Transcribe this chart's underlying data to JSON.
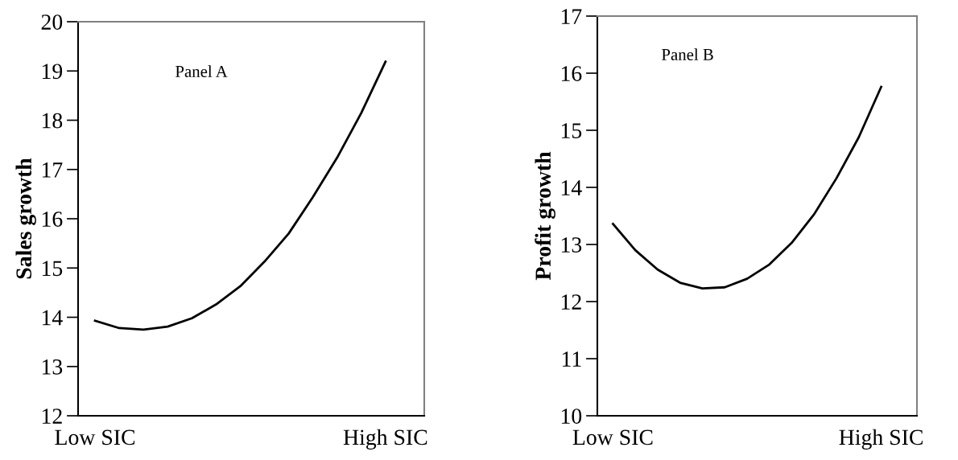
{
  "chart_data": [
    {
      "type": "line",
      "ylabel": "Sales growth",
      "annotations": [
        "Panel A"
      ],
      "categories": [
        "Low SIC",
        null,
        null,
        null,
        null,
        null,
        null,
        null,
        null,
        null,
        null,
        null,
        "High SIC"
      ],
      "series": [
        {
          "color": "#000000",
          "values": [
            13.93,
            13.78,
            13.75,
            13.81,
            13.98,
            14.26,
            14.63,
            15.13,
            15.7,
            16.44,
            17.24,
            18.15,
            19.19
          ]
        }
      ],
      "ylim": [
        12,
        20
      ],
      "yticks": [
        12,
        13,
        14,
        15,
        16,
        17,
        18,
        19,
        20
      ],
      "grid": false,
      "legend": false
    },
    {
      "type": "line",
      "ylabel": "Profit growth",
      "annotations": [
        "Panel B"
      ],
      "categories": [
        "Low SIC",
        null,
        null,
        null,
        null,
        null,
        null,
        null,
        null,
        null,
        null,
        null,
        "High SIC"
      ],
      "series": [
        {
          "color": "#000000",
          "values": [
            13.36,
            12.9,
            12.56,
            12.33,
            12.23,
            12.25,
            12.4,
            12.65,
            13.03,
            13.53,
            14.16,
            14.88,
            15.76
          ]
        }
      ],
      "ylim": [
        10,
        17
      ],
      "yticks": [
        10,
        11,
        12,
        13,
        14,
        15,
        16,
        17
      ],
      "grid": false,
      "legend": false
    }
  ]
}
